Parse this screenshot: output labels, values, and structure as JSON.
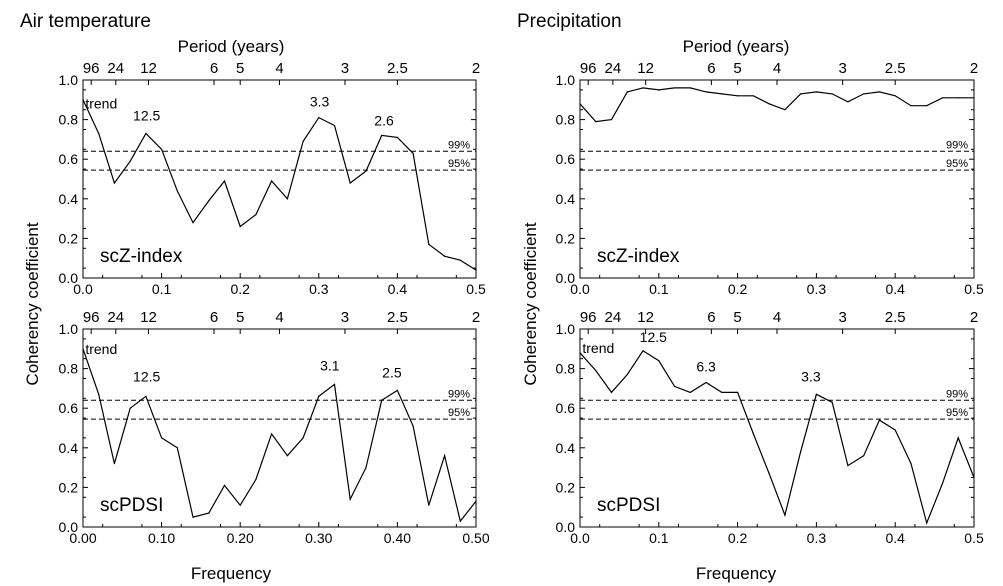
{
  "figure": {
    "column_titles": [
      "Air temperature",
      "Precipitation"
    ],
    "ylabel": "Coherency coefficient",
    "xlabel": "Frequency",
    "top_axis_label": "Period (years)"
  },
  "chart_data": [
    {
      "type": "line",
      "column_title": "Air temperature",
      "panel_label": "scZ-index",
      "xlim": [
        0,
        0.5
      ],
      "ylim": [
        0,
        1
      ],
      "xticks": [
        "0.0",
        "0.1",
        "0.2",
        "0.3",
        "0.4",
        "0.5"
      ],
      "yticks": [
        "0.0",
        "0.2",
        "0.4",
        "0.6",
        "0.8",
        "1.0"
      ],
      "period_ticks": [
        {
          "label": "96",
          "x": 0.0104
        },
        {
          "label": "24",
          "x": 0.0417
        },
        {
          "label": "12",
          "x": 0.0833
        },
        {
          "label": "6",
          "x": 0.1667
        },
        {
          "label": "5",
          "x": 0.2
        },
        {
          "label": "4",
          "x": 0.25
        },
        {
          "label": "3",
          "x": 0.3333
        },
        {
          "label": "2.5",
          "x": 0.4
        },
        {
          "label": "2",
          "x": 0.5
        }
      ],
      "confidence_levels": [
        {
          "label": "99%",
          "y": 0.64
        },
        {
          "label": "95%",
          "y": 0.545
        }
      ],
      "x": [
        0,
        0.02,
        0.04,
        0.06,
        0.08,
        0.1,
        0.12,
        0.14,
        0.16,
        0.18,
        0.2,
        0.22,
        0.24,
        0.26,
        0.28,
        0.3,
        0.32,
        0.34,
        0.36,
        0.38,
        0.4,
        0.42,
        0.44,
        0.46,
        0.48,
        0.5
      ],
      "y": [
        0.9,
        0.73,
        0.48,
        0.59,
        0.73,
        0.65,
        0.44,
        0.28,
        0.39,
        0.49,
        0.26,
        0.32,
        0.49,
        0.4,
        0.69,
        0.81,
        0.77,
        0.48,
        0.54,
        0.72,
        0.71,
        0.63,
        0.17,
        0.11,
        0.09,
        0.04
      ],
      "annotations": [
        {
          "text": "trend",
          "x": 0.003,
          "y": 0.855,
          "anchor": "start"
        },
        {
          "text": "12.5",
          "x": 0.081,
          "y": 0.795,
          "anchor": "middle"
        },
        {
          "text": "3.3",
          "x": 0.301,
          "y": 0.865,
          "anchor": "middle"
        },
        {
          "text": "2.6",
          "x": 0.383,
          "y": 0.77,
          "anchor": "middle"
        }
      ]
    },
    {
      "type": "line",
      "column_title": "Air temperature",
      "panel_label": "scPDSI",
      "xlim": [
        0,
        0.5
      ],
      "ylim": [
        0,
        1
      ],
      "xticks": [
        "0.00",
        "0.10",
        "0.20",
        "0.30",
        "0.40",
        "0.50"
      ],
      "yticks": [
        "0.0",
        "0.2",
        "0.4",
        "0.6",
        "0.8",
        "1.0"
      ],
      "period_ticks": [
        {
          "label": "96",
          "x": 0.0104
        },
        {
          "label": "24",
          "x": 0.0417
        },
        {
          "label": "12",
          "x": 0.0833
        },
        {
          "label": "6",
          "x": 0.1667
        },
        {
          "label": "5",
          "x": 0.2
        },
        {
          "label": "4",
          "x": 0.25
        },
        {
          "label": "3",
          "x": 0.3333
        },
        {
          "label": "2.5",
          "x": 0.4
        },
        {
          "label": "2",
          "x": 0.5
        }
      ],
      "confidence_levels": [
        {
          "label": "99%",
          "y": 0.64
        },
        {
          "label": "95%",
          "y": 0.545
        }
      ],
      "x": [
        0,
        0.02,
        0.04,
        0.06,
        0.08,
        0.1,
        0.12,
        0.14,
        0.16,
        0.18,
        0.2,
        0.22,
        0.24,
        0.26,
        0.28,
        0.3,
        0.32,
        0.34,
        0.36,
        0.38,
        0.4,
        0.42,
        0.44,
        0.46,
        0.48,
        0.5
      ],
      "y": [
        0.9,
        0.67,
        0.32,
        0.6,
        0.66,
        0.45,
        0.4,
        0.05,
        0.07,
        0.21,
        0.11,
        0.24,
        0.47,
        0.36,
        0.45,
        0.66,
        0.72,
        0.14,
        0.3,
        0.64,
        0.69,
        0.51,
        0.11,
        0.36,
        0.03,
        0.13
      ],
      "annotations": [
        {
          "text": "trend",
          "x": 0.003,
          "y": 0.875,
          "anchor": "start"
        },
        {
          "text": "12.5",
          "x": 0.081,
          "y": 0.735,
          "anchor": "middle"
        },
        {
          "text": "3.1",
          "x": 0.314,
          "y": 0.79,
          "anchor": "middle"
        },
        {
          "text": "2.5",
          "x": 0.393,
          "y": 0.755,
          "anchor": "middle"
        }
      ]
    },
    {
      "type": "line",
      "column_title": "Precipitation",
      "panel_label": "scZ-index",
      "xlim": [
        0,
        0.5
      ],
      "ylim": [
        0,
        1
      ],
      "xticks": [
        "0.0",
        "0.1",
        "0.2",
        "0.3",
        "0.4",
        "0.5"
      ],
      "yticks": [
        "0.0",
        "0.2",
        "0.4",
        "0.6",
        "0.8",
        "1.0"
      ],
      "period_ticks": [
        {
          "label": "96",
          "x": 0.0104
        },
        {
          "label": "24",
          "x": 0.0417
        },
        {
          "label": "12",
          "x": 0.0833
        },
        {
          "label": "6",
          "x": 0.1667
        },
        {
          "label": "5",
          "x": 0.2
        },
        {
          "label": "4",
          "x": 0.25
        },
        {
          "label": "3",
          "x": 0.3333
        },
        {
          "label": "2.5",
          "x": 0.4
        },
        {
          "label": "2",
          "x": 0.5
        }
      ],
      "confidence_levels": [
        {
          "label": "99%",
          "y": 0.64
        },
        {
          "label": "95%",
          "y": 0.545
        }
      ],
      "x": [
        0,
        0.02,
        0.04,
        0.06,
        0.08,
        0.1,
        0.12,
        0.14,
        0.16,
        0.18,
        0.2,
        0.22,
        0.24,
        0.26,
        0.28,
        0.3,
        0.32,
        0.34,
        0.36,
        0.38,
        0.4,
        0.42,
        0.44,
        0.46,
        0.48,
        0.5
      ],
      "y": [
        0.88,
        0.79,
        0.8,
        0.94,
        0.96,
        0.95,
        0.96,
        0.96,
        0.94,
        0.93,
        0.92,
        0.92,
        0.88,
        0.85,
        0.93,
        0.94,
        0.93,
        0.89,
        0.93,
        0.94,
        0.92,
        0.87,
        0.87,
        0.91,
        0.91,
        0.91
      ],
      "annotations": []
    },
    {
      "type": "line",
      "column_title": "Precipitation",
      "panel_label": "scPDSI",
      "xlim": [
        0,
        0.5
      ],
      "ylim": [
        0,
        1
      ],
      "xticks": [
        "0.0",
        "0.1",
        "0.2",
        "0.3",
        "0.4",
        "0.5"
      ],
      "yticks": [
        "0.0",
        "0.2",
        "0.4",
        "0.6",
        "0.8",
        "1.0"
      ],
      "period_ticks": [
        {
          "label": "96",
          "x": 0.0104
        },
        {
          "label": "24",
          "x": 0.0417
        },
        {
          "label": "12",
          "x": 0.0833
        },
        {
          "label": "6",
          "x": 0.1667
        },
        {
          "label": "5",
          "x": 0.2
        },
        {
          "label": "4",
          "x": 0.25
        },
        {
          "label": "3",
          "x": 0.3333
        },
        {
          "label": "2.5",
          "x": 0.4
        },
        {
          "label": "2",
          "x": 0.5
        }
      ],
      "confidence_levels": [
        {
          "label": "99%",
          "y": 0.64
        },
        {
          "label": "95%",
          "y": 0.545
        }
      ],
      "x": [
        0,
        0.02,
        0.04,
        0.06,
        0.08,
        0.1,
        0.12,
        0.14,
        0.16,
        0.18,
        0.2,
        0.22,
        0.24,
        0.26,
        0.28,
        0.3,
        0.32,
        0.34,
        0.36,
        0.38,
        0.4,
        0.42,
        0.44,
        0.46,
        0.48,
        0.5
      ],
      "y": [
        0.88,
        0.79,
        0.68,
        0.77,
        0.89,
        0.84,
        0.71,
        0.68,
        0.73,
        0.68,
        0.68,
        0.47,
        0.27,
        0.06,
        0.38,
        0.67,
        0.63,
        0.31,
        0.36,
        0.54,
        0.49,
        0.32,
        0.02,
        0.22,
        0.45,
        0.25
      ],
      "annotations": [
        {
          "text": "trend",
          "x": 0.003,
          "y": 0.88,
          "anchor": "start"
        },
        {
          "text": "12.5",
          "x": 0.093,
          "y": 0.935,
          "anchor": "middle"
        },
        {
          "text": "6.3",
          "x": 0.16,
          "y": 0.785,
          "anchor": "middle"
        },
        {
          "text": "3.3",
          "x": 0.293,
          "y": 0.735,
          "anchor": "middle"
        }
      ]
    }
  ]
}
